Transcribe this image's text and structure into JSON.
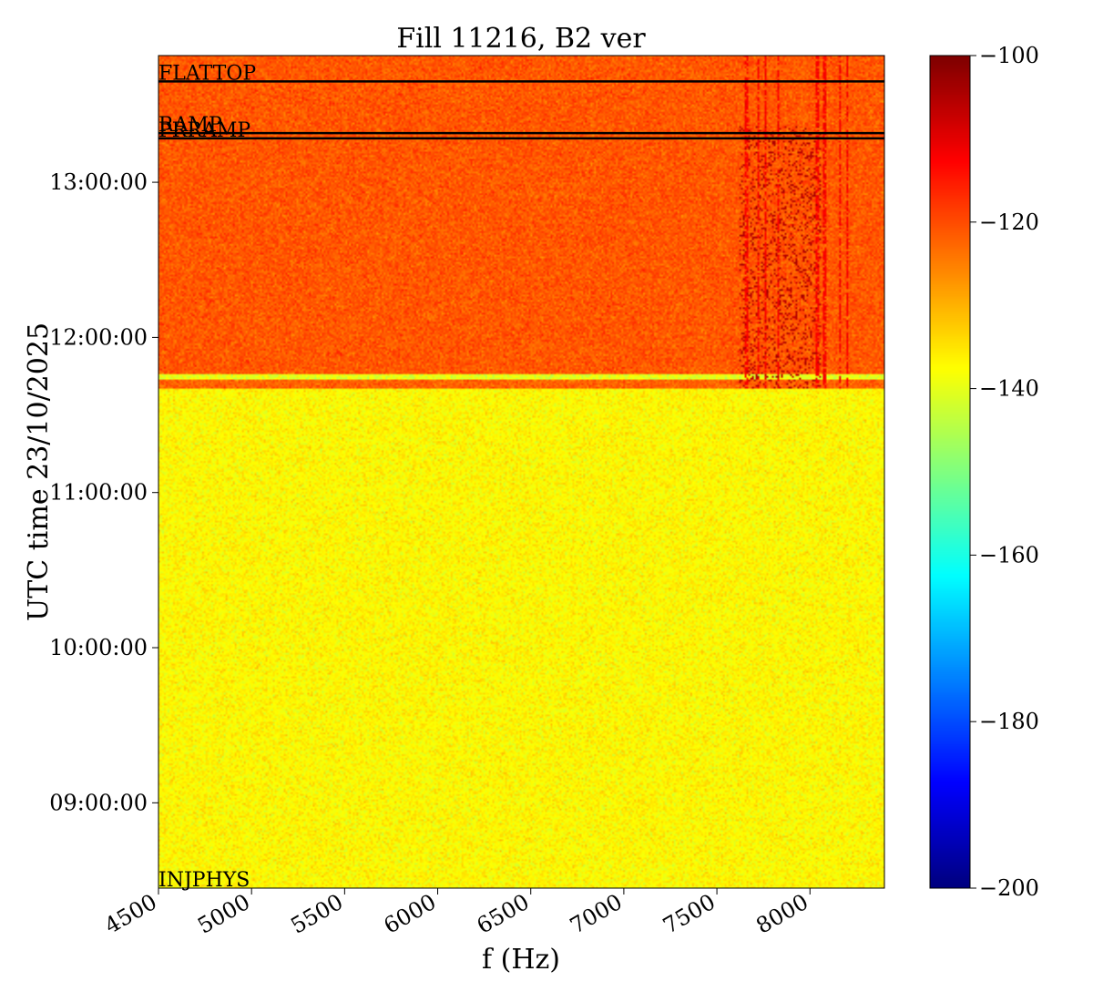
{
  "chart_data": {
    "type": "heatmap",
    "title": "Fill 11216, B2 ver",
    "xlabel": "f (Hz)",
    "ylabel": "UTC time 23/10/2025",
    "xlim": [
      4500,
      8400
    ],
    "ylim": [
      "08:27:00",
      "13:49:00"
    ],
    "xticks": [
      4500,
      5000,
      5500,
      6000,
      6500,
      7000,
      7500,
      8000
    ],
    "yticks": [
      "09:00:00",
      "10:00:00",
      "11:00:00",
      "12:00:00",
      "13:00:00"
    ],
    "colorbar": {
      "colormap": "jet",
      "range": [
        -200,
        -100
      ],
      "ticks": [
        -100,
        -120,
        -140,
        -160,
        -180,
        -200
      ],
      "tick_labels": [
        "−100",
        "−120",
        "−140",
        "−160",
        "−180",
        "−200"
      ]
    },
    "regions": [
      {
        "from": "08:27:00",
        "to": "11:40:00",
        "level_dB": -137
      },
      {
        "from": "11:40:00",
        "to": "11:44:00",
        "level_dB": -122
      },
      {
        "from": "11:44:00",
        "to": "11:46:00",
        "level_dB": -140
      },
      {
        "from": "11:46:00",
        "to": "13:49:00",
        "level_dB": -121
      }
    ],
    "features": [
      {
        "name": "broadband activity",
        "f_from": 7620,
        "f_to": 8060,
        "t_from": "11:40:00",
        "t_to": "13:22:00",
        "level_dB": -105
      },
      {
        "name": "spectral lines",
        "f": [
          7660,
          7720,
          7760,
          7830,
          8040,
          8080,
          8160,
          8200
        ],
        "t_from": "11:40:00",
        "t_to": "13:49:00",
        "level_dB": -112
      }
    ],
    "events": [
      {
        "label": "INJPHYS",
        "time": "08:27:00"
      },
      {
        "label": "PRRAMP",
        "time": "13:17:00"
      },
      {
        "label": "RAMP",
        "time": "13:19:00"
      },
      {
        "label": "FLATTOP",
        "time": "13:39:00"
      }
    ]
  }
}
